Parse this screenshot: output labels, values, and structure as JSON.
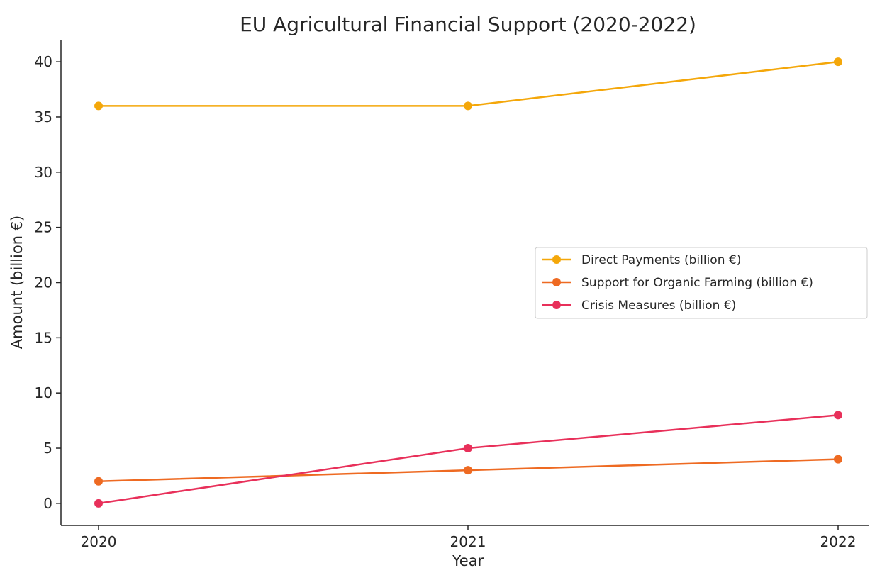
{
  "chart_data": {
    "type": "line",
    "title": "EU Agricultural Financial Support (2020-2022)",
    "xlabel": "Year",
    "ylabel": "Amount (billion €)",
    "categories": [
      "2020",
      "2021",
      "2022"
    ],
    "ylim": [
      -2,
      42
    ],
    "yticks": [
      0,
      5,
      10,
      15,
      20,
      25,
      30,
      35,
      40
    ],
    "grid": false,
    "legend_position": "center-right",
    "series": [
      {
        "name": "Direct Payments (billion €)",
        "values": [
          36,
          36,
          40
        ],
        "color": "#F4A70A"
      },
      {
        "name": "Support for Organic Farming (billion €)",
        "values": [
          2,
          3,
          4
        ],
        "color": "#EE6A22"
      },
      {
        "name": "Crisis Measures (billion €)",
        "values": [
          0,
          5,
          8
        ],
        "color": "#E8305A"
      }
    ]
  }
}
